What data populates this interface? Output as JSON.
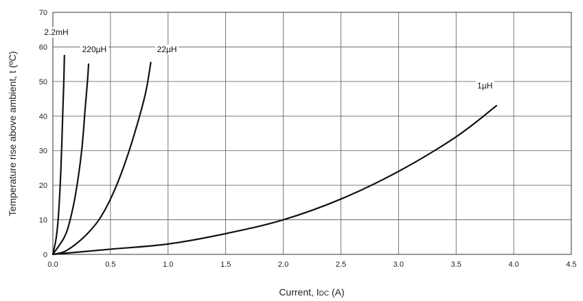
{
  "chart_data": {
    "type": "line",
    "title": "",
    "xlabel": "Current, I",
    "xlabel_sub": "DC",
    "xlabel_unit": " (A)",
    "ylabel": "Temperature rise above ambient, t (ºC)",
    "xlim": [
      0,
      4.5
    ],
    "ylim": [
      0,
      70
    ],
    "x_ticks": [
      "0.0",
      "0.5",
      "1.0",
      "1.5",
      "2.0",
      "2.5",
      "3.0",
      "3.5",
      "4.0",
      "4.5"
    ],
    "y_ticks": [
      "0",
      "10",
      "20",
      "30",
      "40",
      "50",
      "60",
      "70"
    ],
    "grid": true,
    "series": [
      {
        "name": "2.2mH",
        "points": [
          [
            0,
            0
          ],
          [
            0.03,
            5
          ],
          [
            0.05,
            12
          ],
          [
            0.07,
            25
          ],
          [
            0.085,
            40
          ],
          [
            0.095,
            50
          ],
          [
            0.1,
            57.5
          ]
        ]
      },
      {
        "name": "220µH",
        "points": [
          [
            0,
            0
          ],
          [
            0.1,
            5
          ],
          [
            0.15,
            10
          ],
          [
            0.2,
            18
          ],
          [
            0.25,
            30
          ],
          [
            0.28,
            42
          ],
          [
            0.3,
            50
          ],
          [
            0.31,
            55
          ]
        ]
      },
      {
        "name": "22µH",
        "points": [
          [
            0,
            0
          ],
          [
            0.1,
            0.8
          ],
          [
            0.2,
            3
          ],
          [
            0.3,
            6
          ],
          [
            0.4,
            10
          ],
          [
            0.5,
            16
          ],
          [
            0.6,
            24
          ],
          [
            0.7,
            34
          ],
          [
            0.8,
            46
          ],
          [
            0.85,
            55.5
          ]
        ]
      },
      {
        "name": "1µH",
        "points": [
          [
            0,
            0
          ],
          [
            0.5,
            1.5
          ],
          [
            1.0,
            3
          ],
          [
            1.5,
            6
          ],
          [
            2.0,
            10
          ],
          [
            2.5,
            16
          ],
          [
            3.0,
            24
          ],
          [
            3.5,
            34
          ],
          [
            3.85,
            43
          ]
        ]
      }
    ]
  }
}
